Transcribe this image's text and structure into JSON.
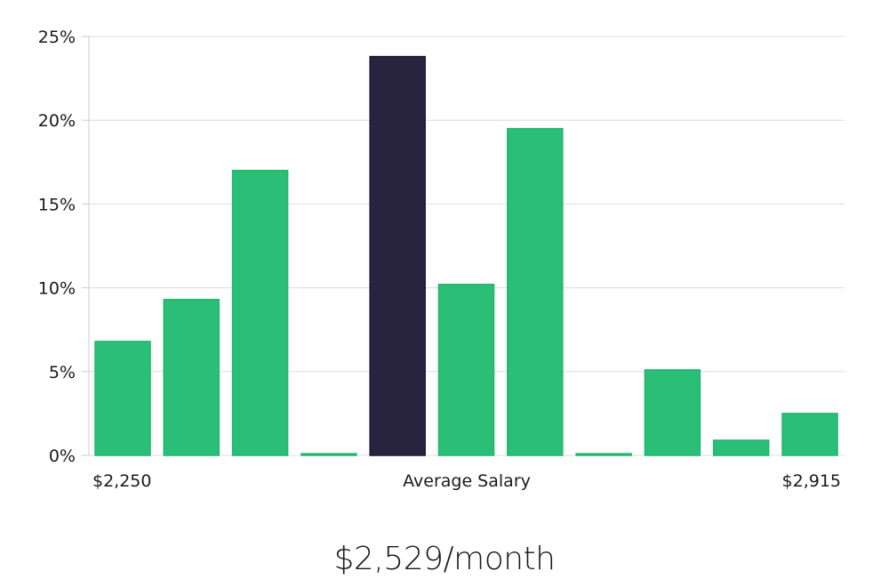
{
  "chart_data": {
    "type": "bar",
    "yticks": [
      "25%",
      "20%",
      "15%",
      "10%",
      "5%",
      "0%"
    ],
    "ylim": [
      0,
      25
    ],
    "values": [
      6.8,
      9.3,
      17.0,
      0.1,
      23.8,
      10.2,
      19.5,
      0.1,
      5.1,
      0.9,
      2.5
    ],
    "highlight_index": 4,
    "x_labels": {
      "left": "$2,250",
      "center": "Average Salary",
      "right": "$2,915"
    },
    "grid": true,
    "colors": {
      "bar": "#2abe76",
      "bar_edge": "#22b56c",
      "highlight": "#28243f",
      "highlight_edge": "#1c1834",
      "grid": "#dcdcdc",
      "axis": "#cccccc"
    }
  },
  "footer": {
    "average_text": "$2,529/month"
  }
}
